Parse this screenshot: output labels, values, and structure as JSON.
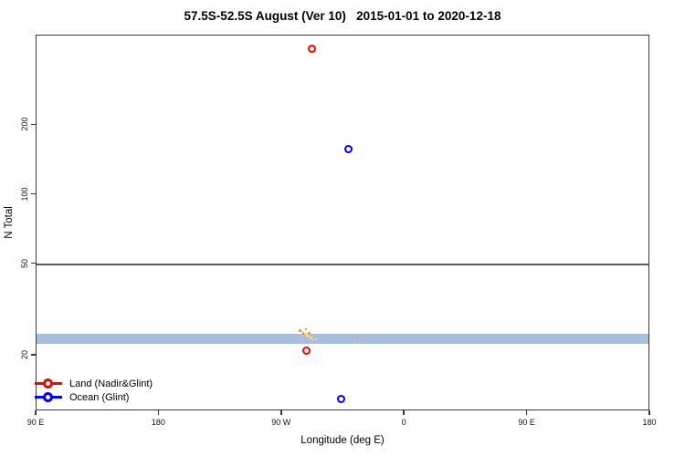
{
  "chart_data": {
    "type": "scatter",
    "title": "57.5S-52.5S August (Ver 10)   2015-01-01 to 2020-12-18",
    "xlabel": "Longitude (deg E)",
    "ylabel": "N Total",
    "x_axis": {
      "min": 90,
      "max": 540,
      "ticks": [
        {
          "value": 90,
          "label": "90 E"
        },
        {
          "value": 180,
          "label": "180"
        },
        {
          "value": 270,
          "label": "90 W"
        },
        {
          "value": 360,
          "label": "0"
        },
        {
          "value": 450,
          "label": "90 E"
        },
        {
          "value": 540,
          "label": "180"
        }
      ]
    },
    "y_axis": {
      "scale": "log",
      "min": 11.5,
      "max": 490,
      "ticks": [
        {
          "value": 20,
          "label": "20"
        },
        {
          "value": 50,
          "label": "50"
        },
        {
          "value": 100,
          "label": "100"
        },
        {
          "value": 200,
          "label": "200"
        }
      ]
    },
    "series": [
      {
        "name": "Land (Nadir&Glint)",
        "color": "#ff0000",
        "marker": "open-circle",
        "points": [
          {
            "x": 292,
            "y": 430
          },
          {
            "x": 288,
            "y": 21
          }
        ]
      },
      {
        "name": "Ocean (Glint)",
        "color": "#0000ff",
        "marker": "open-circle",
        "points": [
          {
            "x": 319,
            "y": 158
          },
          {
            "x": 313,
            "y": 13
          }
        ]
      }
    ],
    "reference_band": {
      "y_low": 22.6,
      "y_high": 25.0,
      "color": "#a9bedd"
    },
    "reference_line": {
      "y": 50,
      "color": "#5c5c5c"
    },
    "cluster_marks": [
      {
        "x": 283.0,
        "y": 25.8,
        "color": "#efa23b",
        "size": 3
      },
      {
        "x": 285.5,
        "y": 25.3,
        "color": "#f6d97f",
        "size": 3
      },
      {
        "x": 287.6,
        "y": 26.0,
        "color": "#efa23b",
        "size": 2
      },
      {
        "x": 286.2,
        "y": 25.0,
        "color": "#e23c2c",
        "size": 2
      },
      {
        "x": 286.9,
        "y": 24.9,
        "color": "#f6d97f",
        "size": 3
      },
      {
        "x": 289.0,
        "y": 24.4,
        "color": "#f6d97f",
        "size": 4
      },
      {
        "x": 289.6,
        "y": 25.1,
        "color": "#efa23b",
        "size": 3
      },
      {
        "x": 291.0,
        "y": 23.9,
        "color": "#f6d97f",
        "size": 3
      },
      {
        "x": 293.0,
        "y": 23.4,
        "color": "#f6d97f",
        "size": 2
      },
      {
        "x": 295.0,
        "y": 23.6,
        "color": "#f6d97f",
        "size": 2
      },
      {
        "x": 325.0,
        "y": 24.1,
        "color": "#efa23b",
        "size": 2
      }
    ],
    "legend": {
      "position": "bottom-left",
      "entries": [
        {
          "label": "Land (Nadir&Glint)",
          "color": "#ff0000"
        },
        {
          "label": "Ocean (Glint)",
          "color": "#0000ff"
        }
      ]
    }
  }
}
